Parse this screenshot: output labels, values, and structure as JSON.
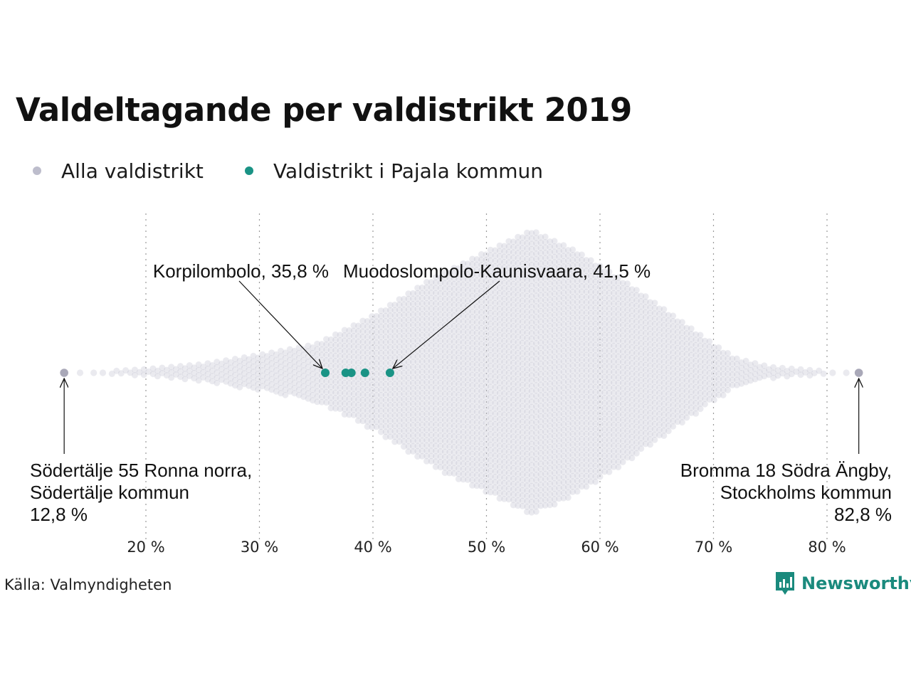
{
  "chart_data": {
    "type": "scatter",
    "subtype": "beeswarm",
    "title": "Valdeltagande per valdistrikt 2019",
    "xlabel": "",
    "ylabel": "",
    "xlim": [
      12,
      84
    ],
    "x_ticks": [
      20,
      30,
      40,
      50,
      60,
      70,
      80
    ],
    "x_tick_labels": [
      "20 %",
      "30 %",
      "40 %",
      "50 %",
      "60 %",
      "70 %",
      "80 %"
    ],
    "grid": "vertical dotted at ticks",
    "legend_position": "top-left",
    "series": [
      {
        "name": "Alla valdistrikt",
        "color": "#bdbdcc",
        "distribution": "approx. 6300 districts, peak near 54 %, range 12,8–82,8 %",
        "min": 12.8,
        "max": 82.8,
        "peak": 54
      },
      {
        "name": "Valdistrikt i Pajala kommun",
        "color": "#1a9385",
        "values": [
          35.8,
          37.6,
          38.1,
          39.3,
          41.5
        ]
      }
    ],
    "annotations": [
      {
        "x": 35.8,
        "lines": [
          "Korpilombolo, 35,8 %"
        ],
        "position": "above"
      },
      {
        "x": 41.5,
        "lines": [
          "Muodoslompolo-Kaunisvaara, 41,5 %"
        ],
        "position": "above"
      },
      {
        "x": 12.8,
        "lines": [
          "Södertälje 55 Ronna norra,",
          "Södertälje kommun",
          "12,8 %"
        ],
        "position": "below-left"
      },
      {
        "x": 82.8,
        "lines": [
          "Bromma 18 Södra Ängby,",
          "Stockholms kommun",
          "82,8 %"
        ],
        "position": "below-right"
      }
    ],
    "source": "Källa: Valmyndigheten",
    "brand": "Newsworthy"
  }
}
